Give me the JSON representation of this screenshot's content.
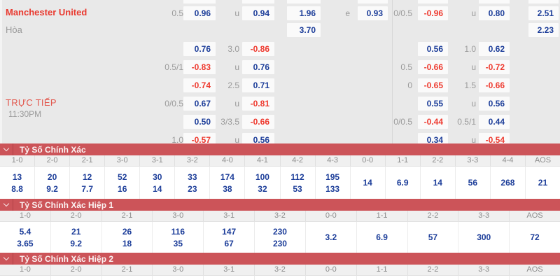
{
  "match": {
    "home_team": "Manchester United",
    "draw_label": "Hòa",
    "live_label": "TRỰC TIẾP",
    "time": "11:30PM"
  },
  "colors": {
    "section_bar_red": "#cc5459",
    "odds_positive_blue": "#1c3d99",
    "odds_negative_red": "#ee3a2f",
    "team_name_red": "#e93a30",
    "label_gray": "#9a9a9a",
    "page_background": "#e9e9e9"
  },
  "odds": {
    "rows": [
      [
        {
          "c": "hl",
          "t": "0.5"
        },
        {
          "c": "a",
          "t": "0.96"
        },
        {
          "c": "ml",
          "t": "u"
        },
        {
          "c": "b",
          "t": "0.94"
        },
        {
          "c": "c",
          "t": "1.96"
        },
        {
          "c": "me",
          "t": "e"
        },
        {
          "c": "d",
          "t": "0.93"
        },
        {
          "c": "hr",
          "t": "0/0.5"
        },
        {
          "c": "e",
          "t": "-0.96"
        },
        {
          "c": "mr",
          "t": "u"
        },
        {
          "c": "f",
          "t": "0.80"
        },
        {
          "c": "g",
          "t": "2.51"
        }
      ],
      [
        {
          "c": "c",
          "t": "3.70"
        },
        {
          "c": "g",
          "t": "2.23"
        }
      ],
      [
        {
          "c": "a",
          "t": "0.76"
        },
        {
          "c": "ml",
          "t": "3.0"
        },
        {
          "c": "b",
          "t": "-0.86"
        },
        {
          "c": "e",
          "t": "0.56"
        },
        {
          "c": "mr",
          "t": "1.0"
        },
        {
          "c": "f",
          "t": "0.62"
        }
      ],
      [
        {
          "c": "hl",
          "t": "0.5/1"
        },
        {
          "c": "a",
          "t": "-0.83"
        },
        {
          "c": "ml",
          "t": "u"
        },
        {
          "c": "b",
          "t": "0.76"
        },
        {
          "c": "hr",
          "t": "0.5"
        },
        {
          "c": "e",
          "t": "-0.66"
        },
        {
          "c": "mr",
          "t": "u"
        },
        {
          "c": "f",
          "t": "-0.72"
        }
      ],
      [
        {
          "c": "a",
          "t": "-0.74"
        },
        {
          "c": "ml",
          "t": "2.5"
        },
        {
          "c": "b",
          "t": "0.71"
        },
        {
          "c": "hr",
          "t": "0"
        },
        {
          "c": "e",
          "t": "-0.65"
        },
        {
          "c": "mr",
          "t": "1.5"
        },
        {
          "c": "f",
          "t": "-0.66"
        }
      ],
      [
        {
          "c": "hl",
          "t": "0/0.5"
        },
        {
          "c": "a",
          "t": "0.67"
        },
        {
          "c": "ml",
          "t": "u"
        },
        {
          "c": "b",
          "t": "-0.81"
        },
        {
          "c": "e",
          "t": "0.55"
        },
        {
          "c": "mr",
          "t": "u"
        },
        {
          "c": "f",
          "t": "0.56"
        }
      ],
      [
        {
          "c": "a",
          "t": "0.50"
        },
        {
          "c": "ml",
          "t": "3/3.5"
        },
        {
          "c": "b",
          "t": "-0.66"
        },
        {
          "c": "hr",
          "t": "0/0.5"
        },
        {
          "c": "e",
          "t": "-0.44"
        },
        {
          "c": "mr",
          "t": "0.5/1"
        },
        {
          "c": "f",
          "t": "0.44"
        }
      ],
      [
        {
          "c": "hl",
          "t": "1.0"
        },
        {
          "c": "a",
          "t": "-0.57"
        },
        {
          "c": "ml",
          "t": "u"
        },
        {
          "c": "b",
          "t": "0.56"
        },
        {
          "c": "e",
          "t": "0.34"
        },
        {
          "c": "mr",
          "t": "u"
        },
        {
          "c": "f",
          "t": "-0.54"
        }
      ]
    ]
  },
  "sections": [
    {
      "title": "Tỷ Số Chính Xác",
      "columns": [
        {
          "score": "1-0",
          "values": [
            "13",
            "8.8"
          ]
        },
        {
          "score": "2-0",
          "values": [
            "20",
            "9.2"
          ]
        },
        {
          "score": "2-1",
          "values": [
            "12",
            "7.7"
          ]
        },
        {
          "score": "3-0",
          "values": [
            "52",
            "16"
          ]
        },
        {
          "score": "3-1",
          "values": [
            "30",
            "14"
          ]
        },
        {
          "score": "3-2",
          "values": [
            "33",
            "23"
          ]
        },
        {
          "score": "4-0",
          "values": [
            "174",
            "38"
          ]
        },
        {
          "score": "4-1",
          "values": [
            "100",
            "32"
          ]
        },
        {
          "score": "4-2",
          "values": [
            "112",
            "53"
          ]
        },
        {
          "score": "4-3",
          "values": [
            "195",
            "133"
          ]
        },
        {
          "score": "0-0",
          "values": [
            "14"
          ]
        },
        {
          "score": "1-1",
          "values": [
            "6.9"
          ]
        },
        {
          "score": "2-2",
          "values": [
            "14"
          ]
        },
        {
          "score": "3-3",
          "values": [
            "56"
          ]
        },
        {
          "score": "4-4",
          "values": [
            "268"
          ]
        },
        {
          "score": "AOS",
          "values": [
            "21"
          ]
        }
      ]
    },
    {
      "title": "Tỷ Số Chính Xác Hiệp 1",
      "columns": [
        {
          "score": "1-0",
          "values": [
            "5.4",
            "3.65"
          ]
        },
        {
          "score": "2-0",
          "values": [
            "21",
            "9.2"
          ]
        },
        {
          "score": "2-1",
          "values": [
            "26",
            "18"
          ]
        },
        {
          "score": "3-0",
          "values": [
            "116",
            "35"
          ]
        },
        {
          "score": "3-1",
          "values": [
            "147",
            "67"
          ]
        },
        {
          "score": "3-2",
          "values": [
            "230",
            "230"
          ]
        },
        {
          "score": "0-0",
          "values": [
            "3.2"
          ]
        },
        {
          "score": "1-1",
          "values": [
            "6.9"
          ]
        },
        {
          "score": "2-2",
          "values": [
            "57"
          ]
        },
        {
          "score": "3-3",
          "values": [
            "300"
          ]
        },
        {
          "score": "AOS",
          "values": [
            "72"
          ]
        }
      ]
    },
    {
      "title": "Tỷ Số Chính Xác Hiệp 2",
      "columns": [
        {
          "score": "1-0",
          "values": []
        },
        {
          "score": "2-0",
          "values": []
        },
        {
          "score": "2-1",
          "values": []
        },
        {
          "score": "3-0",
          "values": []
        },
        {
          "score": "3-1",
          "values": []
        },
        {
          "score": "3-2",
          "values": []
        },
        {
          "score": "0-0",
          "values": []
        },
        {
          "score": "1-1",
          "values": []
        },
        {
          "score": "2-2",
          "values": []
        },
        {
          "score": "3-3",
          "values": []
        },
        {
          "score": "AOS",
          "values": []
        }
      ]
    }
  ]
}
